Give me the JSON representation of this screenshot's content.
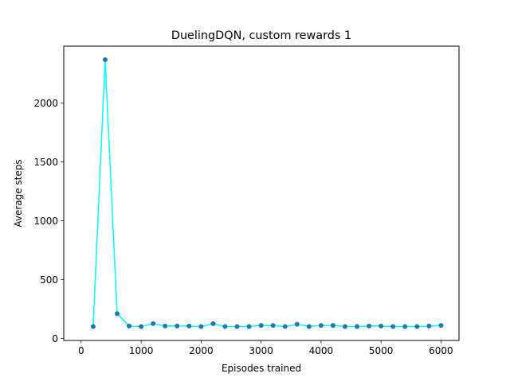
{
  "chart_data": {
    "type": "line",
    "title": "DuelingDQN, custom rewards 1",
    "xlabel": "Episodes trained",
    "ylabel": "Average steps",
    "xlim": [
      -290,
      6300
    ],
    "ylim": [
      -18,
      2485
    ],
    "xticks": [
      0,
      1000,
      2000,
      3000,
      4000,
      5000,
      6000
    ],
    "yticks": [
      0,
      500,
      1000,
      1500,
      2000
    ],
    "grid": false,
    "legend": "none",
    "series": [
      {
        "line_color": "#00ffff",
        "marker_color": "#1f77b4",
        "marker": "circle",
        "points": [
          {
            "x": 200,
            "y": 100
          },
          {
            "x": 400,
            "y": 2370
          },
          {
            "x": 600,
            "y": 210
          },
          {
            "x": 800,
            "y": 105
          },
          {
            "x": 1000,
            "y": 100
          },
          {
            "x": 1200,
            "y": 125
          },
          {
            "x": 1400,
            "y": 105
          },
          {
            "x": 1600,
            "y": 105
          },
          {
            "x": 1800,
            "y": 105
          },
          {
            "x": 2000,
            "y": 100
          },
          {
            "x": 2200,
            "y": 125
          },
          {
            "x": 2400,
            "y": 100
          },
          {
            "x": 2600,
            "y": 100
          },
          {
            "x": 2800,
            "y": 100
          },
          {
            "x": 3000,
            "y": 110
          },
          {
            "x": 3200,
            "y": 110
          },
          {
            "x": 3400,
            "y": 100
          },
          {
            "x": 3600,
            "y": 120
          },
          {
            "x": 3800,
            "y": 100
          },
          {
            "x": 4000,
            "y": 110
          },
          {
            "x": 4200,
            "y": 110
          },
          {
            "x": 4400,
            "y": 100
          },
          {
            "x": 4600,
            "y": 100
          },
          {
            "x": 4800,
            "y": 105
          },
          {
            "x": 5000,
            "y": 105
          },
          {
            "x": 5200,
            "y": 100
          },
          {
            "x": 5400,
            "y": 100
          },
          {
            "x": 5600,
            "y": 100
          },
          {
            "x": 5800,
            "y": 105
          },
          {
            "x": 6000,
            "y": 110
          }
        ]
      }
    ]
  }
}
